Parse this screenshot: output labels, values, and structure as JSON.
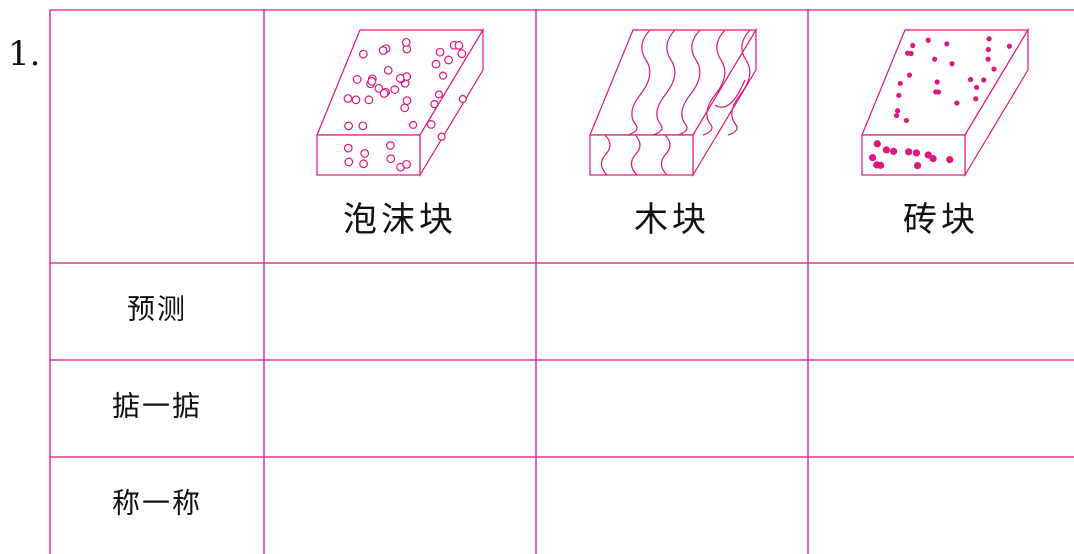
{
  "item_number": "1.",
  "columns": [
    "泡沫块",
    "木块",
    "砖块"
  ],
  "rows": [
    "预测",
    "掂一掂",
    "称一称"
  ]
}
